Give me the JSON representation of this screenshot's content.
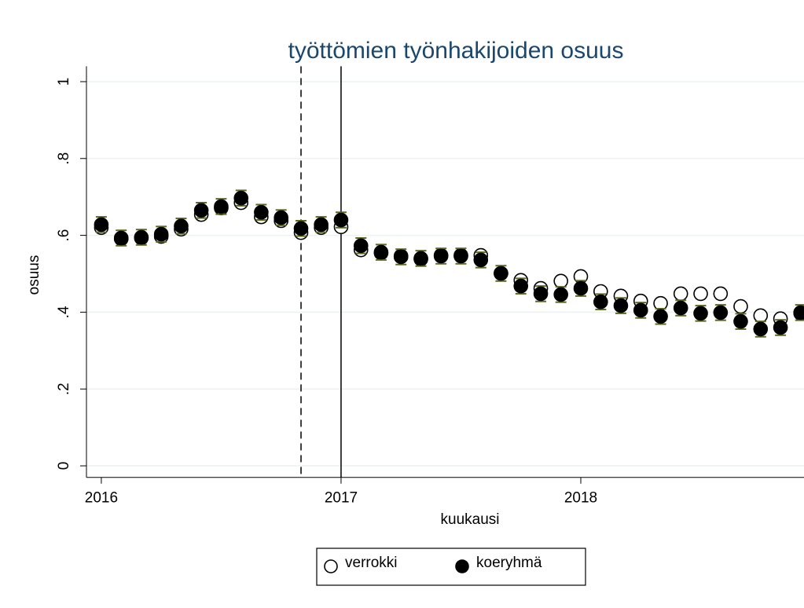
{
  "chart_data": {
    "type": "scatter",
    "title": "työttömien työnhakijoiden osuus",
    "x_label": "kuukausi",
    "y_label": "osuus",
    "x": [
      2016,
      2016.083,
      2016.167,
      2016.25,
      2016.333,
      2016.417,
      2016.5,
      2016.583,
      2016.667,
      2016.75,
      2016.833,
      2016.917,
      2017,
      2017.083,
      2017.167,
      2017.25,
      2017.333,
      2017.417,
      2017.5,
      2017.583,
      2017.667,
      2017.75,
      2017.833,
      2017.917,
      2018,
      2018.083,
      2018.167,
      2018.25,
      2018.333,
      2018.417,
      2018.5,
      2018.583,
      2018.667,
      2018.75,
      2018.833,
      2018.917
    ],
    "series": [
      {
        "name": "verrokki",
        "color": "#000000",
        "filled": false,
        "values": [
          0.62,
          0.591,
          0.593,
          0.597,
          0.616,
          0.654,
          0.671,
          0.685,
          0.648,
          0.638,
          0.607,
          0.62,
          0.622,
          0.562,
          0.554,
          0.546,
          0.538,
          0.548,
          0.548,
          0.548,
          0.501,
          0.483,
          0.462,
          0.481,
          0.493,
          0.454,
          0.442,
          0.429,
          0.423,
          0.448,
          0.448,
          0.448,
          0.415,
          0.391,
          0.383,
          0.397
        ]
      },
      {
        "name": "koeryhmä",
        "color": "#000000",
        "filled": true,
        "error_color": "#5a6b1e",
        "values": [
          0.628,
          0.593,
          0.595,
          0.603,
          0.624,
          0.665,
          0.675,
          0.697,
          0.66,
          0.646,
          0.618,
          0.628,
          0.64,
          0.573,
          0.556,
          0.544,
          0.54,
          0.546,
          0.546,
          0.536,
          0.501,
          0.468,
          0.448,
          0.446,
          0.462,
          0.427,
          0.417,
          0.405,
          0.389,
          0.411,
          0.397,
          0.399,
          0.376,
          0.356,
          0.36,
          0.399
        ],
        "errors": [
          0.02,
          0.02,
          0.02,
          0.02,
          0.02,
          0.02,
          0.02,
          0.02,
          0.02,
          0.02,
          0.02,
          0.02,
          0.02,
          0.02,
          0.02,
          0.02,
          0.02,
          0.02,
          0.02,
          0.02,
          0.02,
          0.02,
          0.02,
          0.02,
          0.02,
          0.02,
          0.02,
          0.02,
          0.02,
          0.02,
          0.02,
          0.02,
          0.02,
          0.02,
          0.02,
          0.02
        ]
      }
    ],
    "xlim": [
      2015.938,
      2018.931
    ],
    "xticks": [
      2016,
      2017,
      2018
    ],
    "ylim": [
      -0.03,
      1.04
    ],
    "yticks": [
      0,
      {
        "value": 0.2,
        "label": ".2"
      },
      {
        "value": 0.4,
        "label": ".4"
      },
      {
        "value": 0.6,
        "label": ".6"
      },
      {
        "value": 0.8,
        "label": ".8"
      },
      1
    ],
    "grid": true,
    "xlines": [
      {
        "value": 2016.833,
        "style": "dashed"
      },
      {
        "value": 2017,
        "style": "solid"
      }
    ],
    "legend": "bottom"
  }
}
